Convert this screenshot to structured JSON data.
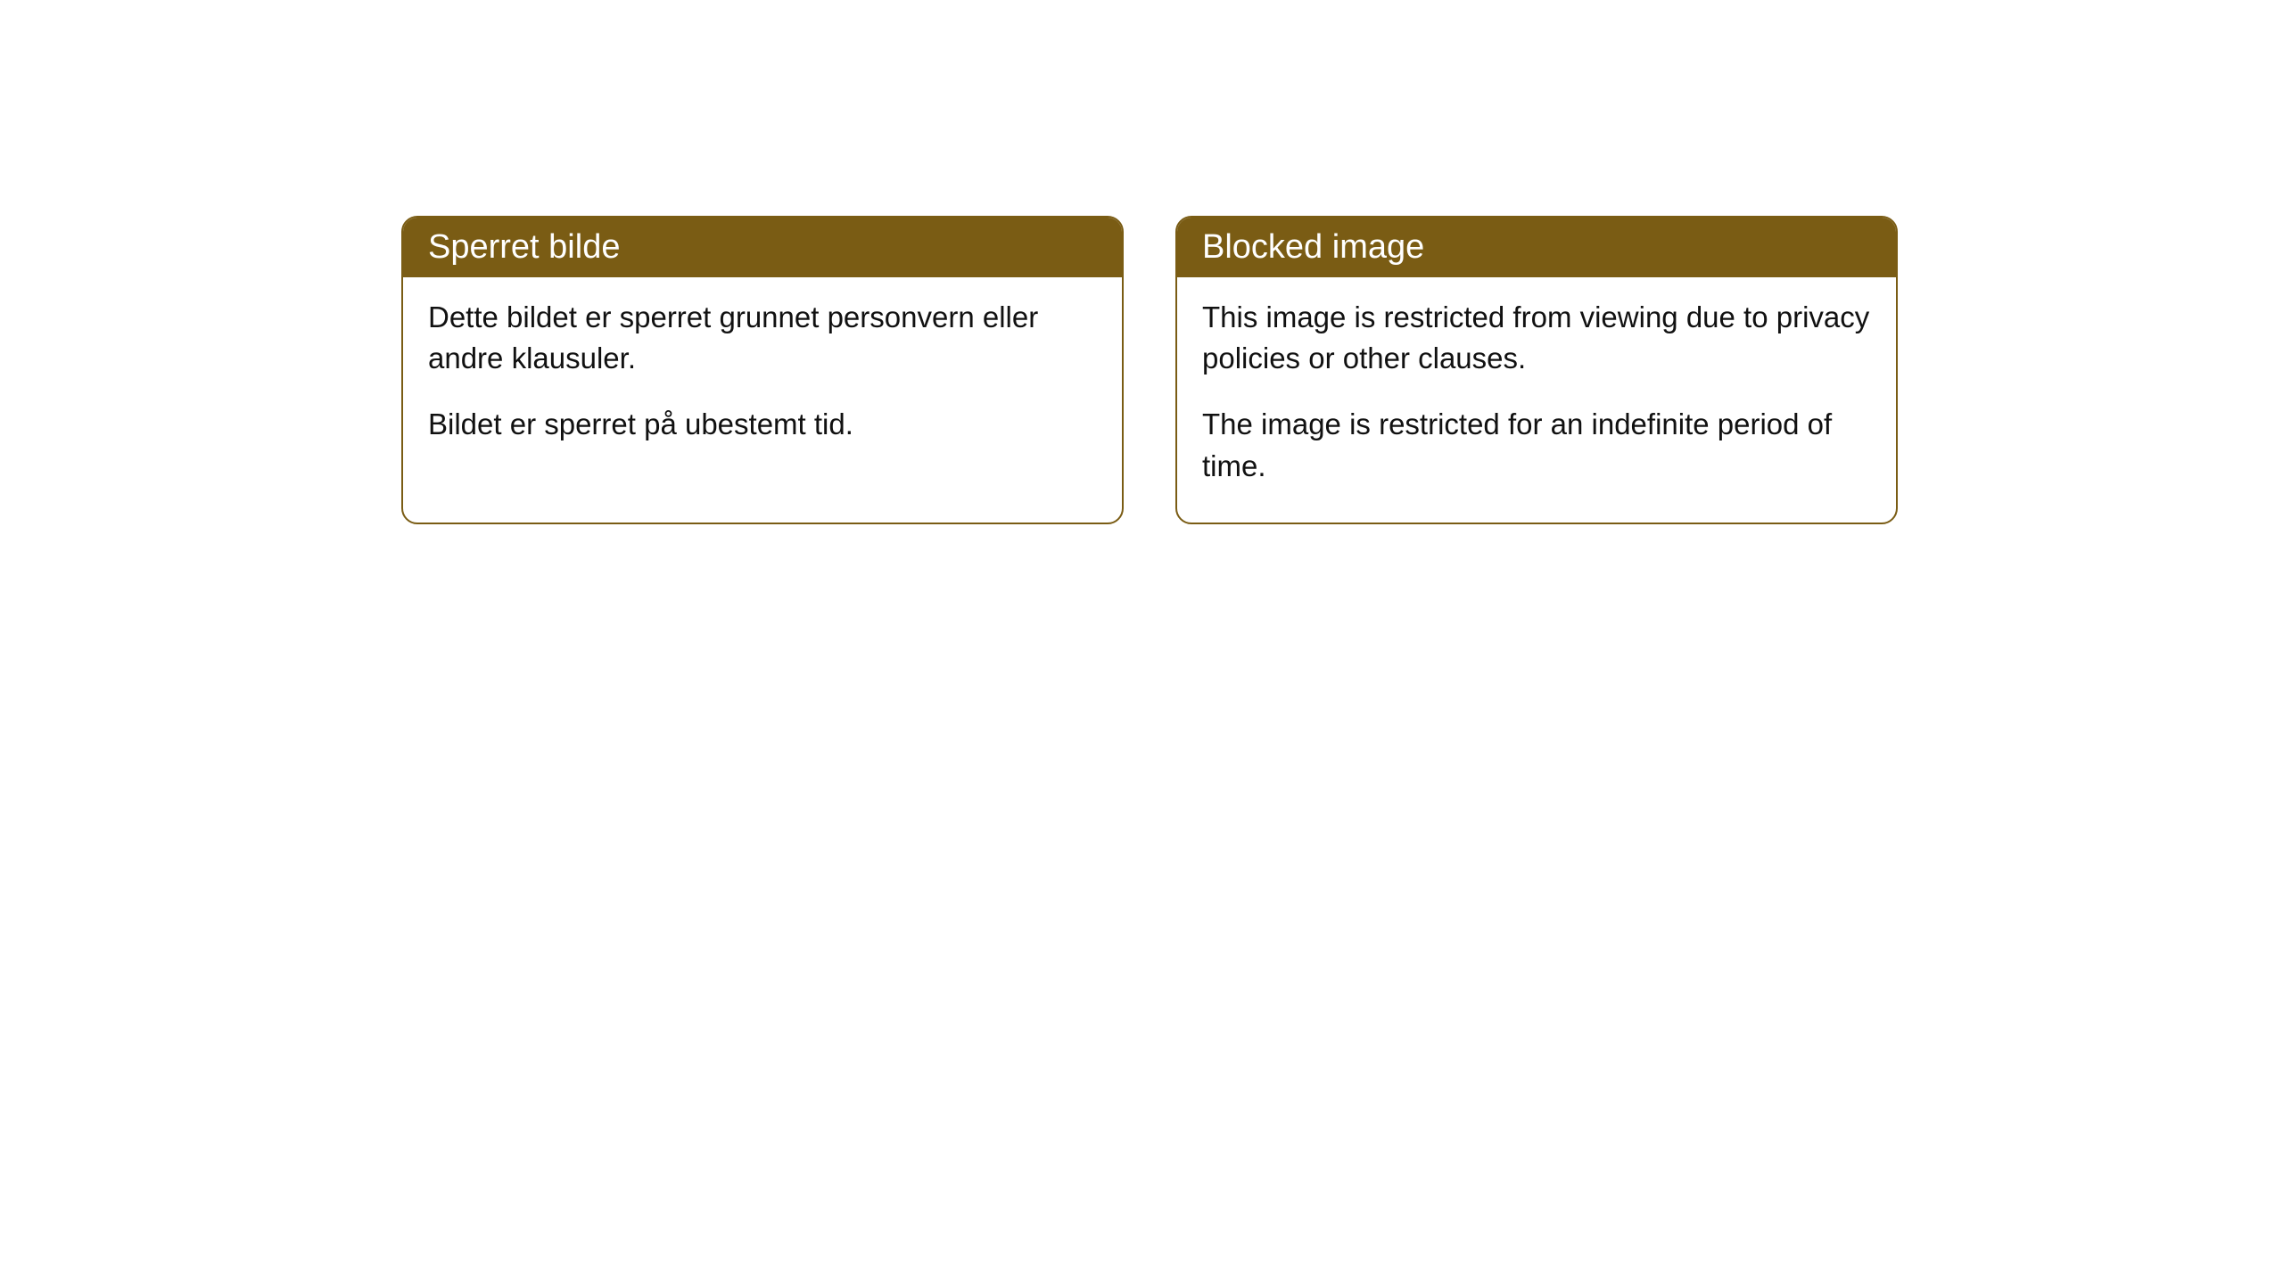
{
  "cards": [
    {
      "title": "Sperret bilde",
      "paragraph1": "Dette bildet er sperret grunnet personvern eller andre klausuler.",
      "paragraph2": "Bildet er sperret på ubestemt tid."
    },
    {
      "title": "Blocked image",
      "paragraph1": "This image is restricted from viewing due to privacy policies or other clauses.",
      "paragraph2": "The image is restricted for an indefinite period of time."
    }
  ],
  "styling": {
    "header_background_color": "#7a5c14",
    "header_text_color": "#ffffff",
    "card_border_color": "#7a5c14",
    "card_background_color": "#ffffff",
    "body_text_color": "#111111",
    "page_background_color": "#ffffff",
    "border_radius": 18,
    "header_fontsize": 38,
    "body_fontsize": 33
  }
}
